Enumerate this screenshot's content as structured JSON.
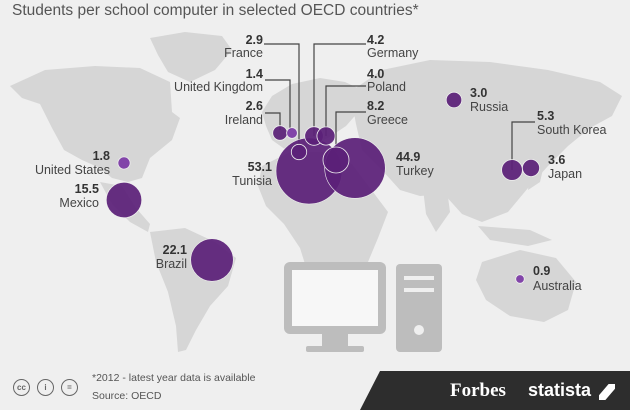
{
  "title": "Students per school computer in selected OECD countries*",
  "footnote": "*2012 - latest year data is available",
  "source": "Source: OECD",
  "brand": {
    "forbes": "Forbes",
    "statista": "statista"
  },
  "license_icons": [
    "cc-icon",
    "by-icon",
    "nd-icon"
  ],
  "colors": {
    "bubble": "#5b2079",
    "bubble_small": "#7c3aa6",
    "map": "#d6d6d6",
    "background": "#efefef",
    "leader": "#444444"
  },
  "chart_data": {
    "type": "scatter",
    "title": "Students per school computer in selected OECD countries*",
    "encoding": "bubble map; bubble area proportional to students per school computer",
    "points": [
      {
        "country": "France",
        "value": 2.9,
        "display": "2.9"
      },
      {
        "country": "Germany",
        "value": 4.2,
        "display": "4.2"
      },
      {
        "country": "United Kingdom",
        "value": 1.4,
        "display": "1.4"
      },
      {
        "country": "Poland",
        "value": 4.0,
        "display": "4.0"
      },
      {
        "country": "Ireland",
        "value": 2.6,
        "display": "2.6"
      },
      {
        "country": "Greece",
        "value": 8.2,
        "display": "8.2"
      },
      {
        "country": "Russia",
        "value": 3.0,
        "display": "3.0"
      },
      {
        "country": "South Korea",
        "value": 5.3,
        "display": "5.3"
      },
      {
        "country": "United States",
        "value": 1.8,
        "display": "1.8"
      },
      {
        "country": "Tunisia",
        "value": 53.1,
        "display": "53.1"
      },
      {
        "country": "Turkey",
        "value": 44.9,
        "display": "44.9"
      },
      {
        "country": "Japan",
        "value": 3.6,
        "display": "3.6"
      },
      {
        "country": "Mexico",
        "value": 15.5,
        "display": "15.5"
      },
      {
        "country": "Brazil",
        "value": 22.1,
        "display": "22.1"
      },
      {
        "country": "Australia",
        "value": 0.9,
        "display": "0.9"
      }
    ]
  }
}
